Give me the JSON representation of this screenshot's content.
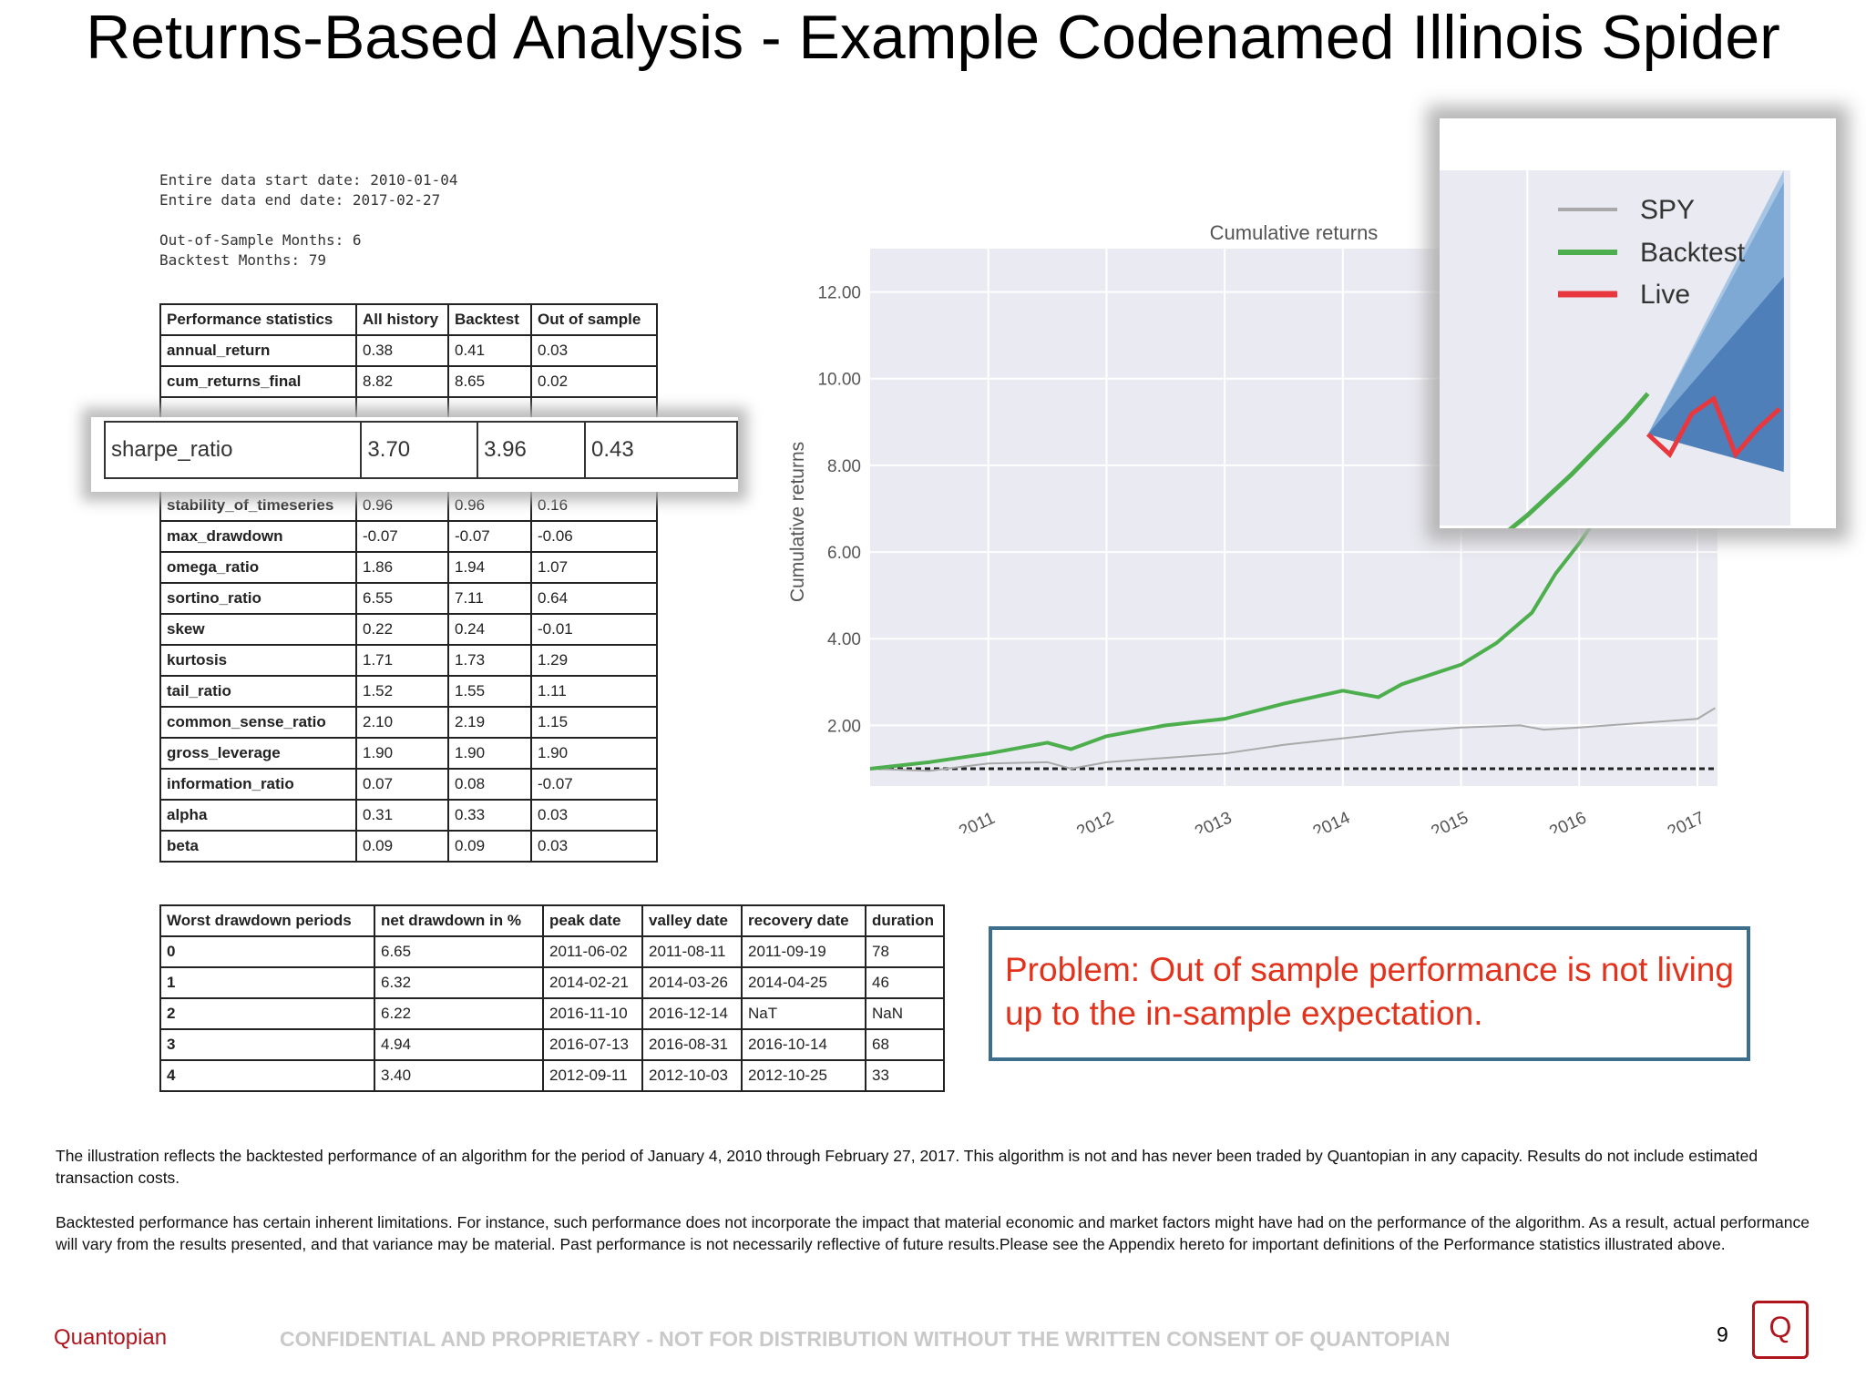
{
  "title": "Returns-Based Analysis - Example Codenamed Illinois Spider",
  "info": {
    "start": "Entire data start date: 2010-01-04",
    "end": "Entire data end date: 2017-02-27",
    "oos": "Out-of-Sample Months: 6",
    "bt": "Backtest Months: 79"
  },
  "perf": {
    "headers": [
      "Performance statistics",
      "All history",
      "Backtest",
      "Out of sample"
    ],
    "rows_top": [
      [
        "annual_return",
        "0.38",
        "0.41",
        "0.03"
      ],
      [
        "cum_returns_final",
        "8.82",
        "8.65",
        "0.02"
      ]
    ],
    "rows_bottom": [
      [
        "stability_of_timeseries",
        "0.96",
        "0.96",
        "0.16"
      ],
      [
        "max_drawdown",
        "-0.07",
        "-0.07",
        "-0.06"
      ],
      [
        "omega_ratio",
        "1.86",
        "1.94",
        "1.07"
      ],
      [
        "sortino_ratio",
        "6.55",
        "7.11",
        "0.64"
      ],
      [
        "skew",
        "0.22",
        "0.24",
        "-0.01"
      ],
      [
        "kurtosis",
        "1.71",
        "1.73",
        "1.29"
      ],
      [
        "tail_ratio",
        "1.52",
        "1.55",
        "1.11"
      ],
      [
        "common_sense_ratio",
        "2.10",
        "2.19",
        "1.15"
      ],
      [
        "gross_leverage",
        "1.90",
        "1.90",
        "1.90"
      ],
      [
        "information_ratio",
        "0.07",
        "0.08",
        "-0.07"
      ],
      [
        "alpha",
        "0.31",
        "0.33",
        "0.03"
      ],
      [
        "beta",
        "0.09",
        "0.09",
        "0.03"
      ]
    ],
    "highlight": [
      "sharpe_ratio",
      "3.70",
      "3.96",
      "0.43"
    ]
  },
  "drawdown": {
    "headers": [
      "Worst drawdown periods",
      "net drawdown in %",
      "peak date",
      "valley date",
      "recovery date",
      "duration"
    ],
    "rows": [
      [
        "0",
        "6.65",
        "2011-06-02",
        "2011-08-11",
        "2011-09-19",
        "78"
      ],
      [
        "1",
        "6.32",
        "2014-02-21",
        "2014-03-26",
        "2014-04-25",
        "46"
      ],
      [
        "2",
        "6.22",
        "2016-11-10",
        "2016-12-14",
        "NaT",
        "NaN"
      ],
      [
        "3",
        "4.94",
        "2016-07-13",
        "2016-08-31",
        "2016-10-14",
        "68"
      ],
      [
        "4",
        "3.40",
        "2012-09-11",
        "2012-10-03",
        "2012-10-25",
        "33"
      ]
    ]
  },
  "chart_data": {
    "type": "line",
    "title": "Cumulative returns",
    "xlabel": "",
    "ylabel": "Cumulative returns",
    "xlim": [
      2010.0,
      2017.17
    ],
    "ylim": [
      0.6,
      13.0
    ],
    "yticks": [
      2.0,
      4.0,
      6.0,
      8.0,
      10.0,
      12.0
    ],
    "xticks": [
      "2011",
      "2012",
      "2013",
      "2014",
      "2015",
      "2016",
      "2017"
    ],
    "grid": true,
    "baseline": 1.0,
    "series": [
      {
        "name": "SPY",
        "color": "#a9a9a9",
        "x": [
          2010.0,
          2010.5,
          2011.0,
          2011.5,
          2011.7,
          2012.0,
          2012.5,
          2013.0,
          2013.5,
          2014.0,
          2014.5,
          2015.0,
          2015.5,
          2015.7,
          2016.0,
          2016.5,
          2017.0,
          2017.15
        ],
        "y": [
          1.0,
          0.95,
          1.12,
          1.15,
          1.0,
          1.15,
          1.25,
          1.35,
          1.55,
          1.7,
          1.85,
          1.95,
          2.0,
          1.9,
          1.95,
          2.05,
          2.15,
          2.4
        ]
      },
      {
        "name": "Backtest",
        "color": "#4cae4c",
        "x": [
          2010.0,
          2010.5,
          2011.0,
          2011.5,
          2011.7,
          2012.0,
          2012.5,
          2013.0,
          2013.5,
          2014.0,
          2014.3,
          2014.5,
          2015.0,
          2015.3,
          2015.6,
          2015.8,
          2016.0,
          2016.2,
          2016.45,
          2016.55
        ],
        "y": [
          1.0,
          1.15,
          1.35,
          1.6,
          1.45,
          1.75,
          2.0,
          2.15,
          2.5,
          2.8,
          2.65,
          2.95,
          3.4,
          3.9,
          4.6,
          5.5,
          6.2,
          7.0,
          8.1,
          8.6
        ]
      },
      {
        "name": "Live",
        "color": "#e8383d",
        "x": [
          2016.55,
          2016.65,
          2016.75,
          2016.85,
          2016.95,
          2017.05,
          2017.15
        ],
        "y": [
          7.8,
          7.4,
          8.2,
          8.5,
          7.4,
          7.9,
          8.3
        ]
      }
    ]
  },
  "legend": {
    "spy": "SPY",
    "backtest": "Backtest",
    "live": "Live"
  },
  "problem": "Problem: Out of sample performance is not living up to the in-sample expectation.",
  "disclaimer1": "The illustration reflects the backtested performance of an algorithm for the period of January 4, 2010 through February 27, 2017. This algorithm is not and has never been traded by Quantopian in any capacity. Results do not include estimated transaction costs.",
  "disclaimer2": "Backtested performance has certain inherent limitations.  For instance, such performance does not incorporate the impact that material economic and market factors might have had on the performance of the algorithm. As a result, actual performance will vary from the results presented, and that variance may be material. Past performance is not necessarily reflective of future results.Please see the Appendix hereto for important definitions of the Performance statistics illustrated above.",
  "footer": {
    "brand": "Quantopian",
    "confidential": "CONFIDENTIAL AND PROPRIETARY - NOT FOR DISTRIBUTION WITHOUT THE WRITTEN CONSENT OF QUANTOPIAN",
    "page": "9",
    "logo": "Q"
  }
}
